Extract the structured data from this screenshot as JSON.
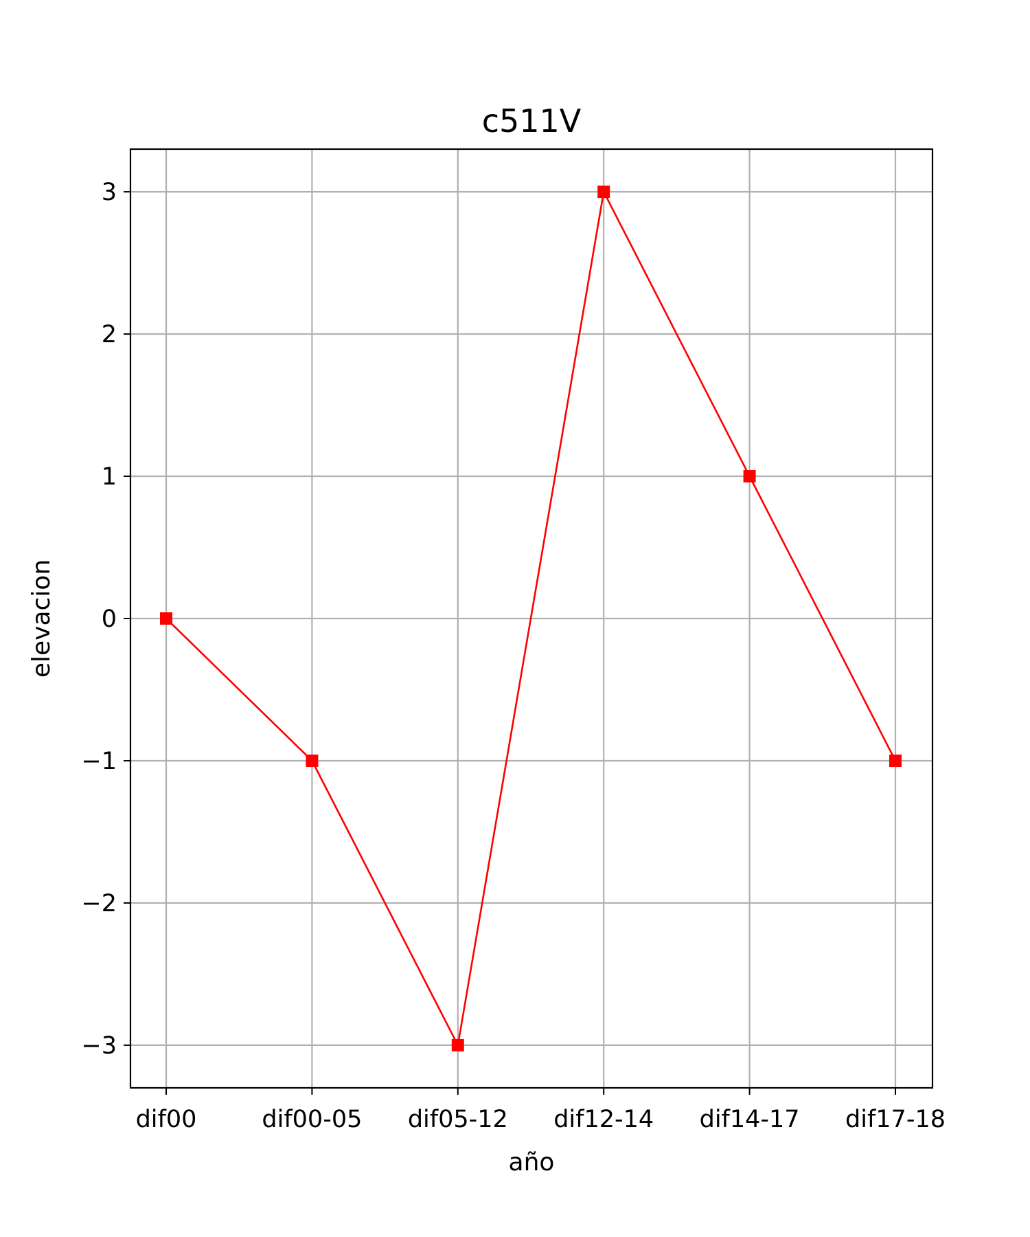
{
  "chart_data": {
    "type": "line",
    "title": "c511V",
    "xlabel": "año",
    "ylabel": "elevacion",
    "categories": [
      "dif00",
      "dif00-05",
      "dif05-12",
      "dif12-14",
      "dif14-17",
      "dif17-18"
    ],
    "series": [
      {
        "values": [
          0,
          -1,
          -3,
          3,
          1,
          -1
        ],
        "color": "#ff0000",
        "marker": "square"
      }
    ],
    "ylim": [
      -3.3,
      3.3
    ],
    "yticks": [
      -3,
      -2,
      -1,
      0,
      1,
      2,
      3
    ],
    "ytick_labels": [
      "−3",
      "−2",
      "−1",
      "0",
      "1",
      "2",
      "3"
    ],
    "grid": true
  }
}
